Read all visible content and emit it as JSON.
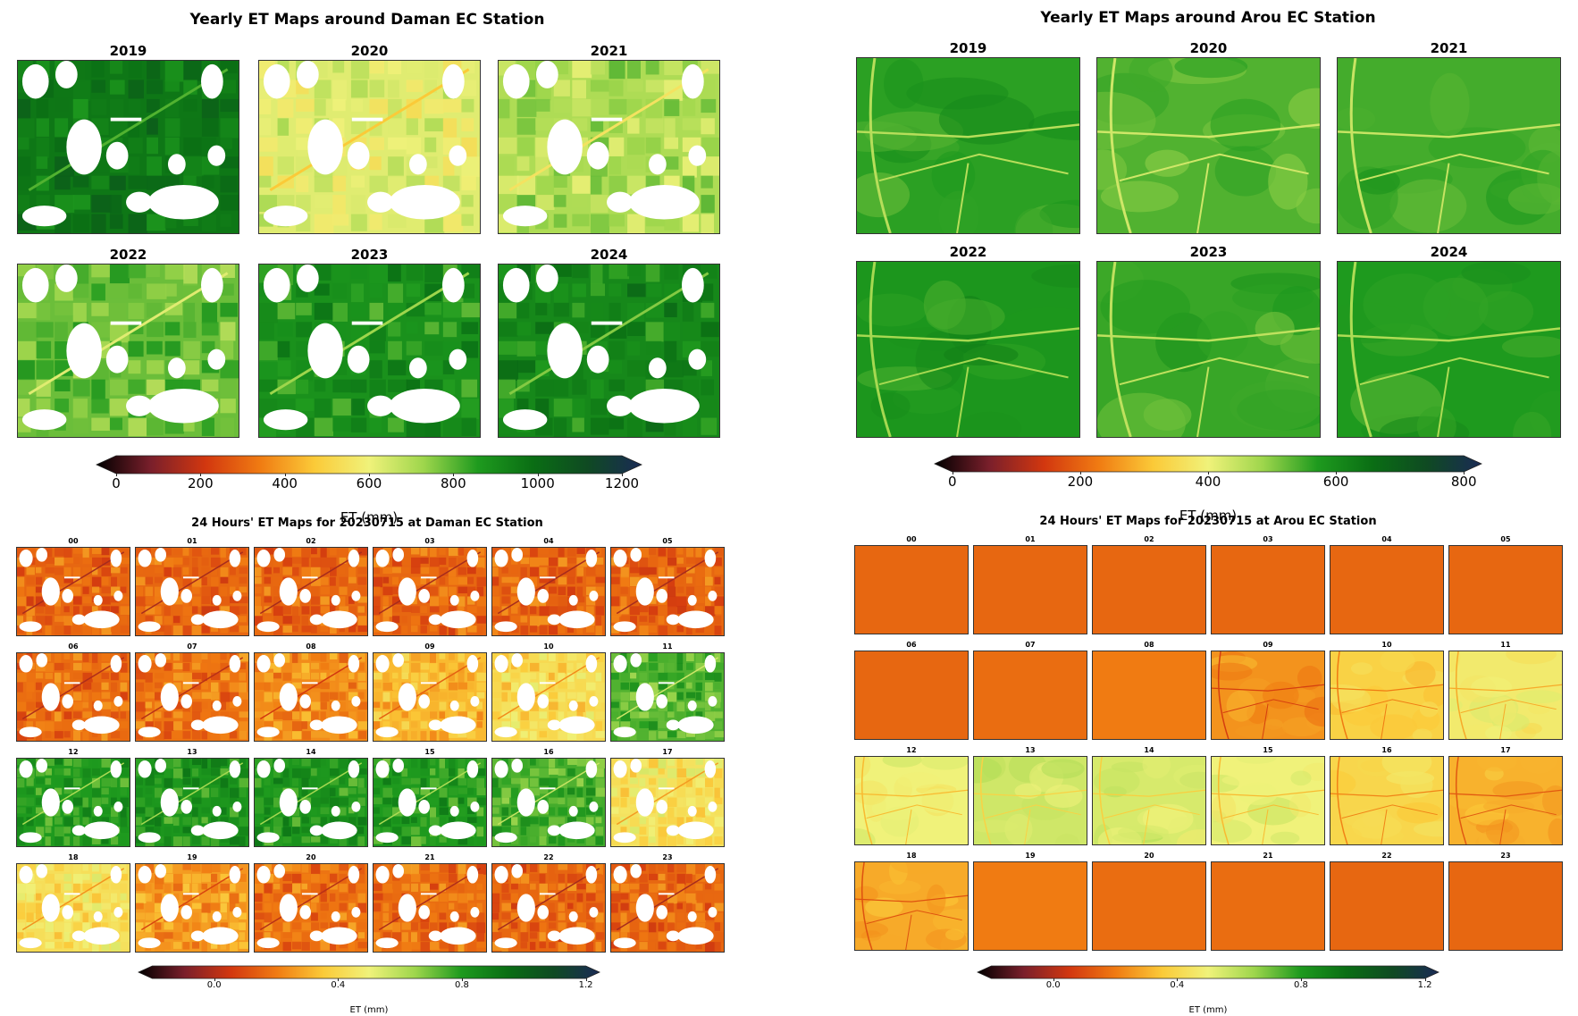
{
  "panels": {
    "daman_yearly": {
      "title": "Yearly ET Maps around Daman EC Station",
      "labels": [
        "2019",
        "2020",
        "2021",
        "2022",
        "2023",
        "2024"
      ],
      "cells": [
        {
          "label": "2019",
          "level": 0.78
        },
        {
          "label": "2020",
          "level": 0.52
        },
        {
          "label": "2021",
          "level": 0.58
        },
        {
          "label": "2022",
          "level": 0.64
        },
        {
          "label": "2023",
          "level": 0.72
        },
        {
          "label": "2024",
          "level": 0.74
        }
      ],
      "colorbar": {
        "label": "ET (mm)",
        "ticks": [
          "0",
          "200",
          "400",
          "600",
          "800",
          "1000",
          "1200"
        ],
        "min": 0,
        "max": 1200
      }
    },
    "arou_yearly": {
      "title": "Yearly ET Maps around Arou EC Station",
      "labels": [
        "2019",
        "2020",
        "2021",
        "2022",
        "2023",
        "2024"
      ],
      "cells": [
        {
          "label": "2019",
          "level": 0.69
        },
        {
          "label": "2020",
          "level": 0.66
        },
        {
          "label": "2021",
          "level": 0.67
        },
        {
          "label": "2022",
          "level": 0.71
        },
        {
          "label": "2023",
          "level": 0.68
        },
        {
          "label": "2024",
          "level": 0.7
        }
      ],
      "colorbar": {
        "label": "ET (mm)",
        "ticks": [
          "0",
          "200",
          "400",
          "600",
          "800"
        ],
        "min": 0,
        "max": 800
      }
    },
    "daman_hourly": {
      "title": "24 Hours' ET Maps for 20230715 at Daman EC Station",
      "labels": [
        "00",
        "01",
        "02",
        "03",
        "04",
        "05",
        "06",
        "07",
        "08",
        "09",
        "10",
        "11",
        "12",
        "13",
        "14",
        "15",
        "16",
        "17",
        "18",
        "19",
        "20",
        "21",
        "22",
        "23"
      ],
      "levels": [
        0.27,
        0.27,
        0.27,
        0.27,
        0.27,
        0.27,
        0.28,
        0.29,
        0.32,
        0.38,
        0.44,
        0.66,
        0.7,
        0.71,
        0.71,
        0.7,
        0.67,
        0.46,
        0.45,
        0.34,
        0.29,
        0.28,
        0.27,
        0.27
      ],
      "colorbar": {
        "label": "ET (mm)",
        "ticks": [
          "0.0",
          "0.4",
          "0.8",
          "1.2"
        ],
        "min": -0.2,
        "max": 1.2
      }
    },
    "arou_hourly": {
      "title": "24 Hours' ET Maps for 20230715 at Arou EC Station",
      "labels": [
        "00",
        "01",
        "02",
        "03",
        "04",
        "05",
        "06",
        "07",
        "08",
        "09",
        "10",
        "11",
        "12",
        "13",
        "14",
        "15",
        "16",
        "17",
        "18",
        "19",
        "20",
        "21",
        "22",
        "23"
      ],
      "levels": [
        0.27,
        0.27,
        0.27,
        0.27,
        0.27,
        0.27,
        0.27,
        0.28,
        0.3,
        0.33,
        0.42,
        0.48,
        0.5,
        0.54,
        0.53,
        0.5,
        0.43,
        0.37,
        0.36,
        0.3,
        0.28,
        0.28,
        0.27,
        0.27
      ],
      "colorbar": {
        "label": "ET (mm)",
        "ticks": [
          "0.0",
          "0.4",
          "0.8",
          "1.2"
        ],
        "min": -0.2,
        "max": 1.2
      }
    }
  },
  "colormap": {
    "stops": [
      "#000000",
      "#7a1f2b",
      "#d2370f",
      "#f07b12",
      "#fbca38",
      "#f0f27a",
      "#9ed64c",
      "#1e9a1e",
      "#0a6e14",
      "#0f4a22",
      "#1a2a55"
    ]
  }
}
